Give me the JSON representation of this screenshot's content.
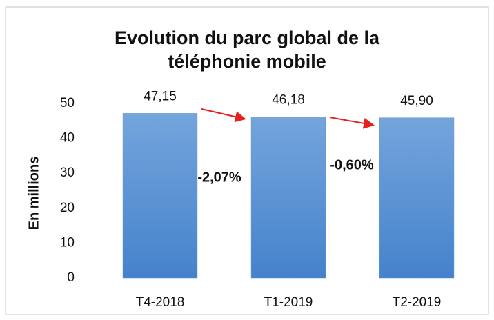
{
  "chart_data": {
    "type": "bar",
    "title": "Evolution du parc global de la téléphonie mobile",
    "ylabel": "En millions",
    "categories": [
      "T4-2018",
      "T1-2019",
      "T2-2019"
    ],
    "values": [
      47.15,
      46.18,
      45.9
    ],
    "value_labels": [
      "47,15",
      "46,18",
      "45,90"
    ],
    "annotations": [
      "-2,07%",
      "-0,60%"
    ],
    "color": "#5b93d3",
    "ylim": [
      0,
      50
    ],
    "yticks": [
      0,
      10,
      20,
      30,
      40,
      50
    ],
    "grid": false
  }
}
